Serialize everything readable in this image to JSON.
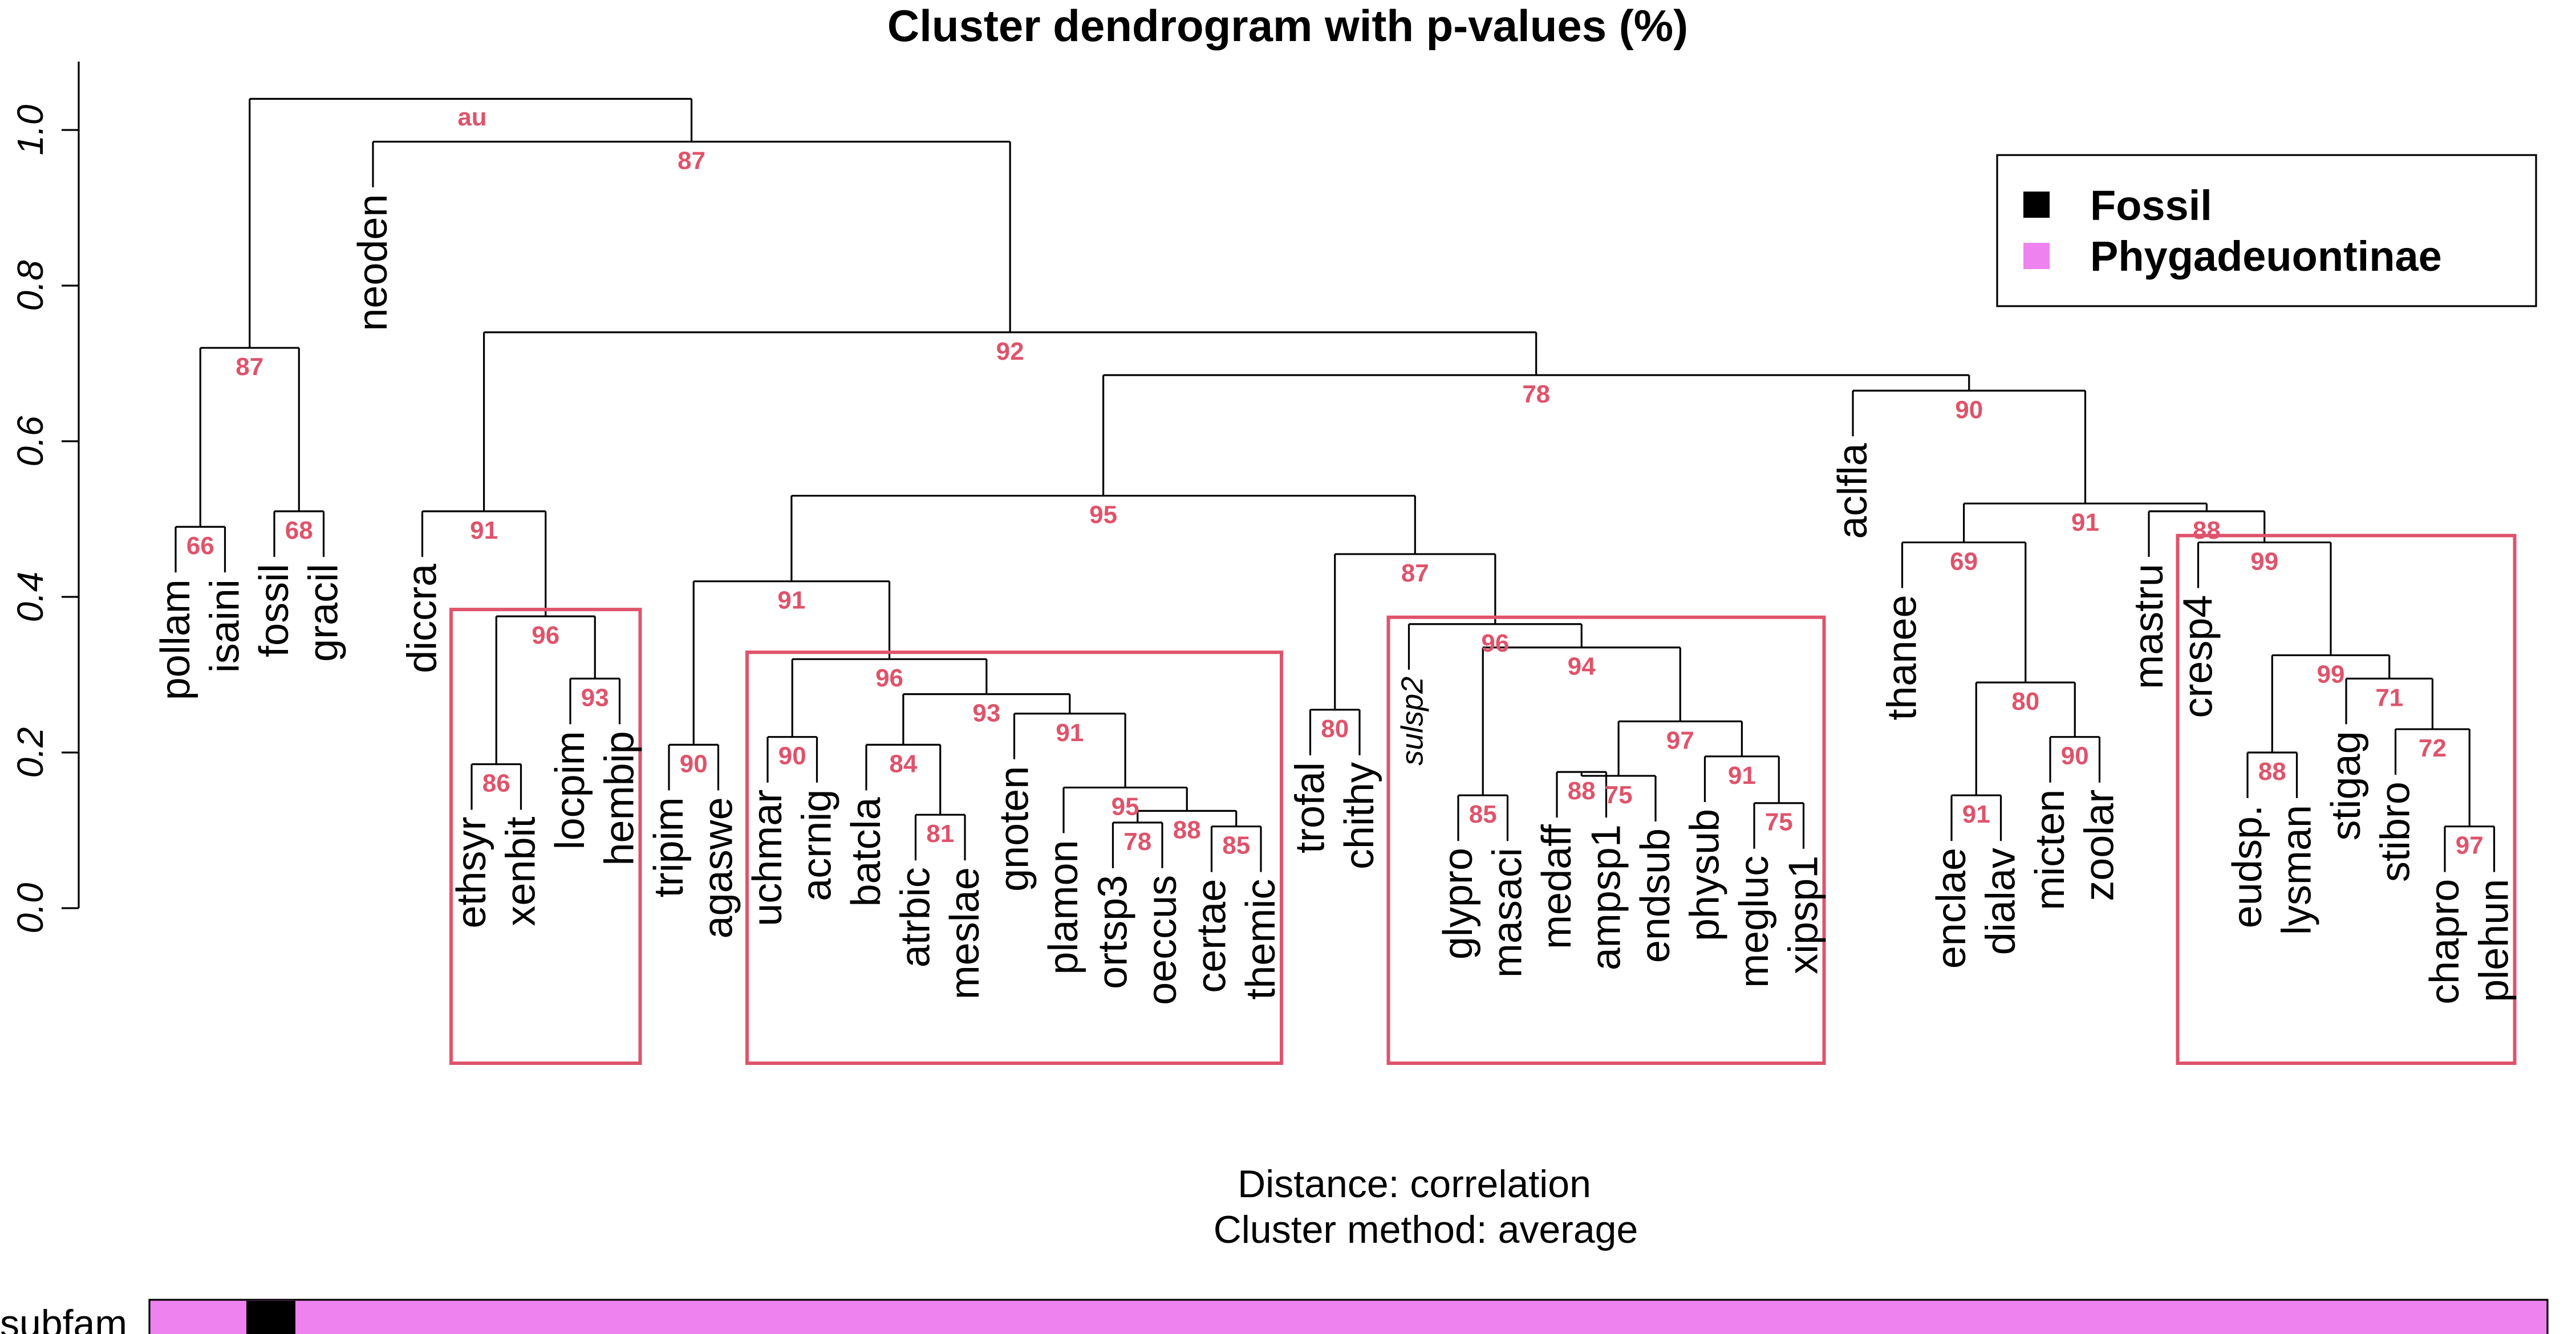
{
  "title": "Cluster dendrogram with p-values (%)",
  "au_label": "au",
  "y_axis": {
    "ticks": [
      "0.0",
      "0.2",
      "0.4",
      "0.6",
      "0.8",
      "1.0"
    ],
    "range": [
      0,
      1.04
    ]
  },
  "distance_note": "Distance:  correlation",
  "method_note": "Cluster method: average",
  "legend": [
    {
      "label": "Fossil",
      "color": "#000000"
    },
    {
      "label": "Phygadeuontinae",
      "color": "#EE82EE"
    }
  ],
  "bar": {
    "label": "subfam",
    "fossil_leaf": "fossil",
    "base_color": "#EE82EE",
    "fossil_color": "#000000"
  },
  "chart_data": {
    "type": "dendrogram",
    "pvalue_color": "#DF536B",
    "leaves": [
      "pollam",
      "isaini",
      "fossil",
      "gracil",
      "neoden",
      "diccra",
      "ethsyr",
      "xenbit",
      "locpim",
      "hembip",
      "tripim",
      "agaswe",
      "uchmar",
      "acrnig",
      "batcla",
      "atrbic",
      "meslae",
      "gnoten",
      "plamon",
      "ortsp3",
      "oeccus",
      "certae",
      "themic",
      "trofal",
      "chithy",
      "sulsp2",
      "glypro",
      "masaci",
      "medaff",
      "ampsp1",
      "endsub",
      "physub",
      "megluc",
      "xipsp1",
      "aclfla",
      "thanee",
      "enclae",
      "dialav",
      "micten",
      "zoolar",
      "mastru",
      "cresp4",
      "eudsp.",
      "lysman",
      "stigag",
      "stibro",
      "chapro",
      "plehun"
    ],
    "merges": [
      {
        "id": "c1",
        "children": [
          "pollam",
          "isaini"
        ],
        "height": 0.49,
        "au": "66"
      },
      {
        "id": "c2",
        "children": [
          "fossil",
          "gracil"
        ],
        "height": 0.51,
        "au": "68"
      },
      {
        "id": "c3",
        "children": [
          "c1",
          "c2"
        ],
        "height": 0.72,
        "au": "87"
      },
      {
        "id": "c4",
        "children": [
          "ethsyr",
          "xenbit"
        ],
        "height": 0.185,
        "au": "86"
      },
      {
        "id": "c5",
        "children": [
          "locpim",
          "hembip"
        ],
        "height": 0.295,
        "au": "93"
      },
      {
        "id": "c6",
        "children": [
          "c4",
          "c5"
        ],
        "height": 0.375,
        "au": "96"
      },
      {
        "id": "c7",
        "children": [
          "diccra",
          "c6"
        ],
        "height": 0.51,
        "au": "91"
      },
      {
        "id": "c8",
        "children": [
          "tripim",
          "agaswe"
        ],
        "height": 0.21,
        "au": "90"
      },
      {
        "id": "c9",
        "children": [
          "uchmar",
          "acrnig"
        ],
        "height": 0.22,
        "au": "90"
      },
      {
        "id": "c10",
        "children": [
          "atrbic",
          "meslae"
        ],
        "height": 0.12,
        "au": "81"
      },
      {
        "id": "c11",
        "children": [
          "batcla",
          "c10"
        ],
        "height": 0.21,
        "au": "84"
      },
      {
        "id": "c12",
        "children": [
          "ortsp3",
          "oeccus"
        ],
        "height": 0.11,
        "au": "78"
      },
      {
        "id": "c13",
        "children": [
          "certae",
          "themic"
        ],
        "height": 0.105,
        "au": "85"
      },
      {
        "id": "c14",
        "children": [
          "c12",
          "c13"
        ],
        "height": 0.125,
        "au": "88"
      },
      {
        "id": "c15",
        "children": [
          "plamon",
          "c14"
        ],
        "height": 0.155,
        "au": "95"
      },
      {
        "id": "c16",
        "children": [
          "gnoten",
          "c15"
        ],
        "height": 0.25,
        "au": "91"
      },
      {
        "id": "c17",
        "children": [
          "c11",
          "c16"
        ],
        "height": 0.275,
        "au": "93"
      },
      {
        "id": "c18",
        "children": [
          "c9",
          "c17"
        ],
        "height": 0.32,
        "au": "96"
      },
      {
        "id": "c19",
        "children": [
          "c8",
          "c18"
        ],
        "height": 0.42,
        "au": "91"
      },
      {
        "id": "c20",
        "children": [
          "trofal",
          "chithy"
        ],
        "height": 0.255,
        "au": "80"
      },
      {
        "id": "c21",
        "children": [
          "glypro",
          "masaci"
        ],
        "height": 0.145,
        "au": "85"
      },
      {
        "id": "c22",
        "children": [
          "medaff",
          "ampsp1"
        ],
        "height": 0.175,
        "au": "88"
      },
      {
        "id": "c23",
        "children": [
          "c22",
          "endsub"
        ],
        "height": 0.17,
        "au": "75"
      },
      {
        "id": "c24",
        "children": [
          "megluc",
          "xipsp1"
        ],
        "height": 0.135,
        "au": "75"
      },
      {
        "id": "c25",
        "children": [
          "physub",
          "c24"
        ],
        "height": 0.195,
        "au": "91"
      },
      {
        "id": "c26",
        "children": [
          "c23",
          "c25"
        ],
        "height": 0.24,
        "au": "97"
      },
      {
        "id": "c27",
        "children": [
          "c21",
          "c26"
        ],
        "height": 0.335,
        "au": "94"
      },
      {
        "id": "c28",
        "children": [
          "sulsp2",
          "c27"
        ],
        "height": 0.365,
        "au": "96"
      },
      {
        "id": "c29",
        "children": [
          "c20",
          "c28"
        ],
        "height": 0.455,
        "au": "87"
      },
      {
        "id": "c30",
        "children": [
          "c19",
          "c29"
        ],
        "height": 0.53,
        "au": "95"
      },
      {
        "id": "c31",
        "children": [
          "enclae",
          "dialav"
        ],
        "height": 0.145,
        "au": "91"
      },
      {
        "id": "c32",
        "children": [
          "micten",
          "zoolar"
        ],
        "height": 0.22,
        "au": "90"
      },
      {
        "id": "c33",
        "children": [
          "c31",
          "c32"
        ],
        "height": 0.29,
        "au": "80"
      },
      {
        "id": "c34",
        "children": [
          "thanee",
          "c33"
        ],
        "height": 0.47,
        "au": "69"
      },
      {
        "id": "c35",
        "children": [
          "eudsp.",
          "lysman"
        ],
        "height": 0.2,
        "au": "88"
      },
      {
        "id": "c36",
        "children": [
          "chapro",
          "plehun"
        ],
        "height": 0.105,
        "au": "97"
      },
      {
        "id": "c37",
        "children": [
          "stibro",
          "c36"
        ],
        "height": 0.23,
        "au": "72"
      },
      {
        "id": "c38",
        "children": [
          "stigag",
          "c37"
        ],
        "height": 0.295,
        "au": "71"
      },
      {
        "id": "c39",
        "children": [
          "c35",
          "c38"
        ],
        "height": 0.325,
        "au": "99"
      },
      {
        "id": "c40",
        "children": [
          "cresp4",
          "c39"
        ],
        "height": 0.47,
        "au": "99"
      },
      {
        "id": "c41",
        "children": [
          "mastru",
          "c40"
        ],
        "height": 0.51,
        "au": "88"
      },
      {
        "id": "c42",
        "children": [
          "c34",
          "c41"
        ],
        "height": 0.52,
        "au": "91"
      },
      {
        "id": "c43",
        "children": [
          "aclfla",
          "c42"
        ],
        "height": 0.665,
        "au": "90"
      },
      {
        "id": "c44",
        "children": [
          "c30",
          "c43"
        ],
        "height": 0.685,
        "au": "78"
      },
      {
        "id": "c45",
        "children": [
          "c7",
          "c44"
        ],
        "height": 0.74,
        "au": "92"
      },
      {
        "id": "c46",
        "children": [
          "neoden",
          "c45"
        ],
        "height": 0.985,
        "au": "87"
      },
      {
        "id": "c47",
        "children": [
          "c3",
          "c46"
        ],
        "height": 1.04,
        "au": ""
      }
    ],
    "highlight_clusters": [
      "c6",
      "c18",
      "c28",
      "c40"
    ]
  }
}
